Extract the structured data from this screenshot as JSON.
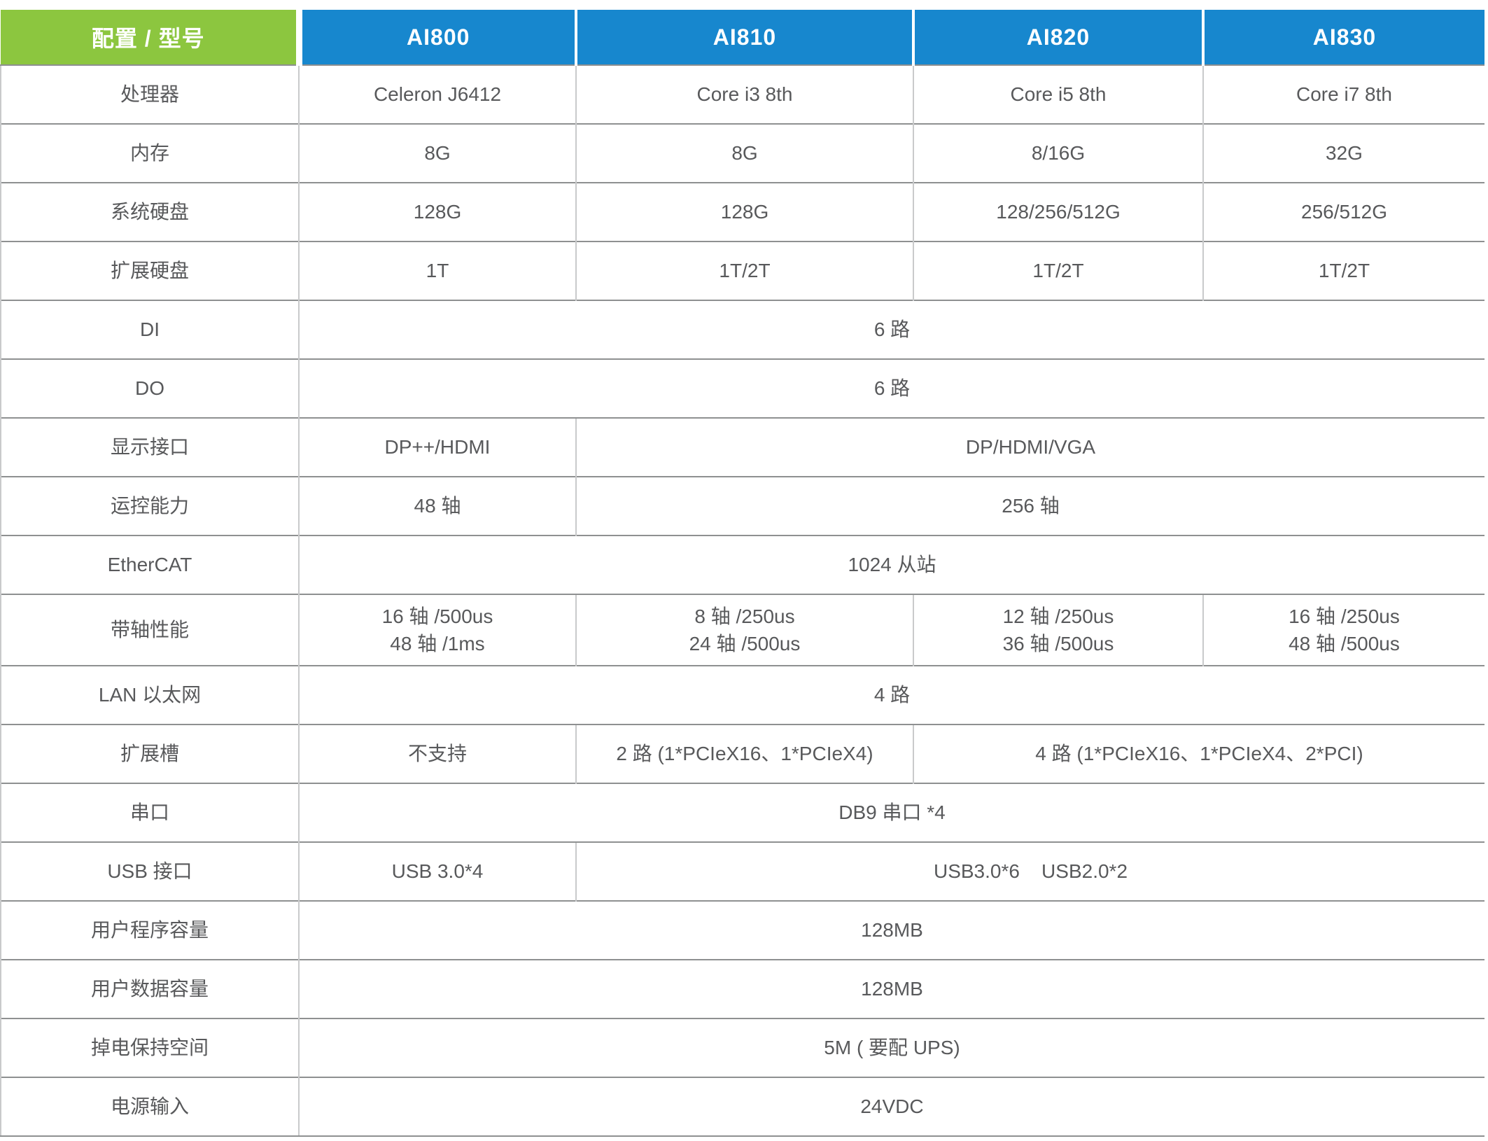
{
  "header": {
    "corner": "配置 / 型号",
    "models": [
      "AI800",
      "AI810",
      "AI820",
      "AI830"
    ]
  },
  "rows": [
    {
      "label": "处理器",
      "cells": [
        {
          "t": "Celeron J6412"
        },
        {
          "t": "Core i3 8th"
        },
        {
          "t": "Core i5 8th"
        },
        {
          "t": "Core i7 8th"
        }
      ]
    },
    {
      "label": "内存",
      "cells": [
        {
          "t": "8G"
        },
        {
          "t": "8G"
        },
        {
          "t": "8/16G"
        },
        {
          "t": "32G"
        }
      ]
    },
    {
      "label": "系统硬盘",
      "cells": [
        {
          "t": "128G"
        },
        {
          "t": "128G"
        },
        {
          "t": "128/256/512G"
        },
        {
          "t": "256/512G"
        }
      ]
    },
    {
      "label": "扩展硬盘",
      "cells": [
        {
          "t": "1T"
        },
        {
          "t": "1T/2T"
        },
        {
          "t": "1T/2T"
        },
        {
          "t": "1T/2T"
        }
      ]
    },
    {
      "label": "DI",
      "cells": [
        {
          "t": "6 路",
          "span": 4
        }
      ]
    },
    {
      "label": "DO",
      "cells": [
        {
          "t": "6 路",
          "span": 4
        }
      ]
    },
    {
      "label": "显示接口",
      "cells": [
        {
          "t": "DP++/HDMI"
        },
        {
          "t": "DP/HDMI/VGA",
          "span": 3
        }
      ]
    },
    {
      "label": "运控能力",
      "cells": [
        {
          "t": "48 轴"
        },
        {
          "t": "256 轴",
          "span": 3
        }
      ]
    },
    {
      "label": "EtherCAT",
      "cells": [
        {
          "t": "1024 从站",
          "span": 4
        }
      ]
    },
    {
      "label": "带轴性能",
      "cells": [
        {
          "t": "16 轴 /500us\n48 轴 /1ms"
        },
        {
          "t": "8 轴 /250us\n24 轴 /500us"
        },
        {
          "t": "12 轴 /250us\n36 轴 /500us"
        },
        {
          "t": "16 轴 /250us\n48 轴 /500us"
        }
      ]
    },
    {
      "label": "LAN 以太网",
      "cells": [
        {
          "t": "4 路",
          "span": 4
        }
      ]
    },
    {
      "label": "扩展槽",
      "cells": [
        {
          "t": "不支持"
        },
        {
          "t": "2 路 (1*PCIeX16、1*PCIeX4)"
        },
        {
          "t": "4 路 (1*PCIeX16、1*PCIeX4、2*PCI)",
          "span": 2
        }
      ]
    },
    {
      "label": "串口",
      "cells": [
        {
          "t": "DB9 串口 *4",
          "span": 4
        }
      ]
    },
    {
      "label": "USB 接口",
      "cells": [
        {
          "t": "USB 3.0*4"
        },
        {
          "t": "USB3.0*6    USB2.0*2",
          "span": 3
        }
      ]
    },
    {
      "label": "用户程序容量",
      "cells": [
        {
          "t": "128MB",
          "span": 4
        }
      ]
    },
    {
      "label": "用户数据容量",
      "cells": [
        {
          "t": "128MB",
          "span": 4
        }
      ]
    },
    {
      "label": "掉电保持空间",
      "cells": [
        {
          "t": "5M ( 要配 UPS)",
          "span": 4
        }
      ]
    },
    {
      "label": "电源输入",
      "cells": [
        {
          "t": "24VDC",
          "span": 4
        }
      ]
    }
  ],
  "colors": {
    "header_label_bg": "#8CC63F",
    "header_model_bg": "#1787CE",
    "header_text": "#FFFFFF",
    "cell_text": "#58595B",
    "horizontal_border": "#8E9091",
    "vertical_border": "#C9CACB"
  }
}
